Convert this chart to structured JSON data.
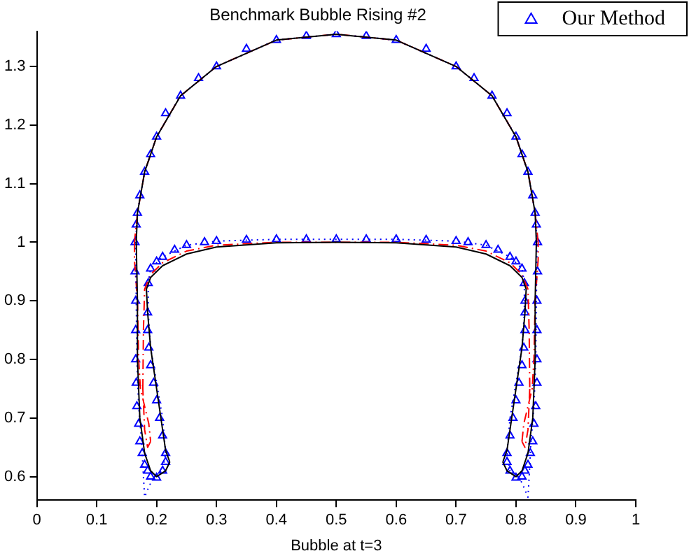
{
  "chart_data": {
    "type": "line",
    "title": "Benchmark Bubble Rising #2",
    "xlabel": "Bubble at t=3",
    "xlim": [
      0,
      1
    ],
    "xticks": [
      0,
      0.1,
      0.2,
      0.3,
      0.4,
      0.5,
      0.6,
      0.7,
      0.8,
      0.9,
      1
    ],
    "ylim": [
      0.56,
      1.36
    ],
    "yticks": [
      0.6,
      0.7,
      0.8,
      0.9,
      1,
      1.1,
      1.2,
      1.3
    ],
    "grid": false,
    "legend": "top right",
    "series": [
      {
        "color": "#000000",
        "line_style": "solid",
        "marker": "none",
        "x": [
          0.166,
          0.168,
          0.168,
          0.172,
          0.18,
          0.19,
          0.2,
          0.215,
          0.222,
          null,
          0.222,
          0.215,
          0.21,
          0.2,
          0.19,
          0.185,
          0.183,
          null,
          0.183,
          0.19,
          0.21,
          0.25,
          0.3,
          0.4,
          0.5,
          0.6,
          0.7,
          0.75,
          0.79,
          0.81,
          0.817,
          null,
          0.817,
          0.815,
          0.81,
          0.8,
          0.79,
          0.785,
          0.778,
          null,
          0.778,
          0.785,
          0.8,
          0.81,
          0.82,
          0.828,
          0.832,
          0.832,
          0.834,
          null,
          0.834,
          0.832,
          0.82,
          0.8,
          0.76,
          0.7,
          0.6,
          0.5,
          0.4,
          0.3,
          0.24,
          0.2,
          0.18,
          0.168,
          0.166
        ],
        "values": [
          1.0,
          0.9,
          0.8,
          0.7,
          0.64,
          0.61,
          0.6,
          0.61,
          0.625,
          null,
          0.625,
          0.645,
          0.68,
          0.75,
          0.82,
          0.88,
          0.92,
          null,
          0.92,
          0.94,
          0.96,
          0.98,
          0.992,
          0.999,
          1.0,
          0.999,
          0.992,
          0.98,
          0.96,
          0.94,
          0.92,
          null,
          0.92,
          0.88,
          0.82,
          0.75,
          0.68,
          0.645,
          0.625,
          null,
          0.625,
          0.61,
          0.6,
          0.61,
          0.64,
          0.7,
          0.8,
          0.9,
          1.0,
          null,
          1.0,
          1.05,
          1.12,
          1.18,
          1.25,
          1.3,
          1.345,
          1.355,
          1.345,
          1.3,
          1.25,
          1.18,
          1.12,
          1.05,
          1.0
        ]
      },
      {
        "color": "#0000ff",
        "line_style": "dotted",
        "marker": "none",
        "x": [
          0.165,
          0.166,
          0.167,
          0.17,
          0.175,
          0.178,
          0.18,
          0.186,
          0.195,
          0.21,
          0.215,
          null,
          0.215,
          0.21,
          0.2,
          0.19,
          0.186,
          0.186,
          null,
          0.186,
          0.19,
          0.21,
          0.25,
          0.3,
          0.4,
          0.5,
          0.6,
          0.7,
          0.75,
          0.79,
          0.81,
          0.814,
          null,
          0.814,
          0.814,
          0.81,
          0.8,
          0.79,
          0.785,
          null,
          0.785,
          0.79,
          0.805,
          0.814,
          0.82,
          0.822,
          0.825,
          0.83,
          0.833,
          0.834,
          0.835,
          null,
          0.835,
          0.832,
          0.82,
          0.8,
          0.76,
          0.7,
          0.6,
          0.5,
          0.4,
          0.3,
          0.24,
          0.2,
          0.18,
          0.168,
          0.165
        ],
        "values": [
          1.0,
          0.9,
          0.8,
          0.72,
          0.66,
          0.6,
          0.565,
          0.58,
          0.6,
          0.61,
          0.64,
          null,
          0.64,
          0.7,
          0.76,
          0.82,
          0.88,
          0.93,
          null,
          0.93,
          0.955,
          0.975,
          0.995,
          1.002,
          1.005,
          1.005,
          1.005,
          1.002,
          0.995,
          0.975,
          0.955,
          0.93,
          null,
          0.93,
          0.88,
          0.82,
          0.76,
          0.7,
          0.64,
          null,
          0.64,
          0.61,
          0.6,
          0.58,
          0.565,
          0.6,
          0.66,
          0.72,
          0.8,
          0.9,
          1.0,
          null,
          1.0,
          1.05,
          1.12,
          1.18,
          1.25,
          1.3,
          1.345,
          1.355,
          1.345,
          1.3,
          1.25,
          1.18,
          1.12,
          1.05,
          1.0
        ]
      },
      {
        "color": "#ff0000",
        "line_style": "dashed",
        "marker": "none",
        "x": [
          0.163,
          0.163,
          0.168,
          0.17,
          0.173,
          0.18,
          0.187,
          0.19,
          null,
          0.19,
          0.185,
          0.18,
          0.177,
          null,
          0.177,
          0.178,
          0.18,
          0.19,
          0.21,
          0.25,
          0.3,
          0.4,
          0.5,
          0.6,
          0.7,
          0.75,
          0.79,
          0.81,
          0.82,
          0.822,
          0.823,
          null,
          0.823,
          0.82,
          0.815,
          0.81,
          null,
          0.81,
          0.813,
          0.82,
          0.827,
          0.83,
          0.832,
          0.837,
          0.837,
          null,
          0.837,
          0.832,
          0.82,
          0.8,
          0.76,
          0.7,
          0.6,
          0.5,
          0.4,
          0.3,
          0.24,
          0.2,
          0.18,
          0.168,
          0.163
        ],
        "values": [
          1.0,
          0.97,
          0.9,
          0.8,
          0.75,
          0.72,
          0.69,
          0.66,
          null,
          0.66,
          0.65,
          0.68,
          0.75,
          null,
          0.75,
          0.85,
          0.92,
          0.945,
          0.965,
          0.985,
          0.995,
          1.0,
          1.0,
          1.0,
          0.995,
          0.985,
          0.965,
          0.945,
          0.92,
          0.85,
          0.75,
          null,
          0.75,
          0.68,
          0.65,
          0.66,
          null,
          0.66,
          0.69,
          0.72,
          0.75,
          0.8,
          0.9,
          0.97,
          1.0,
          null,
          1.0,
          1.05,
          1.12,
          1.18,
          1.25,
          1.3,
          1.345,
          1.355,
          1.345,
          1.3,
          1.25,
          1.18,
          1.12,
          1.05,
          1.0
        ]
      },
      {
        "name": "Our Method",
        "type": "scatter",
        "color": "#0000ff",
        "marker": "triangle",
        "x": [
          0.164,
          0.164,
          0.165,
          0.165,
          0.165,
          0.166,
          0.167,
          0.17,
          0.172,
          0.176,
          0.18,
          0.185,
          0.19,
          0.2,
          0.21,
          0.215,
          0.215,
          0.21,
          0.205,
          0.2,
          0.195,
          0.19,
          0.187,
          0.185,
          0.185,
          0.186,
          0.19,
          0.2,
          0.21,
          0.23,
          0.25,
          0.28,
          0.3,
          0.35,
          0.4,
          0.45,
          0.5,
          0.55,
          0.6,
          0.65,
          0.7,
          0.72,
          0.75,
          0.77,
          0.79,
          0.8,
          0.81,
          0.814,
          0.815,
          0.815,
          0.815,
          0.813,
          0.81,
          0.805,
          0.8,
          0.795,
          0.79,
          0.785,
          0.785,
          0.79,
          0.8,
          0.81,
          0.815,
          0.82,
          0.824,
          0.828,
          0.83,
          0.833,
          0.835,
          0.835,
          0.835,
          0.835,
          0.836,
          0.836,
          0.834,
          0.832,
          0.828,
          0.82,
          0.81,
          0.8,
          0.785,
          0.76,
          0.73,
          0.7,
          0.65,
          0.6,
          0.55,
          0.5,
          0.45,
          0.4,
          0.35,
          0.3,
          0.27,
          0.24,
          0.215,
          0.2,
          0.19,
          0.18,
          0.172,
          0.168,
          0.166
        ],
        "values": [
          1.0,
          0.95,
          0.9,
          0.85,
          0.8,
          0.76,
          0.72,
          0.69,
          0.66,
          0.64,
          0.62,
          0.61,
          0.6,
          0.598,
          0.61,
          0.625,
          0.64,
          0.67,
          0.7,
          0.73,
          0.76,
          0.79,
          0.82,
          0.85,
          0.88,
          0.93,
          0.955,
          0.967,
          0.975,
          0.987,
          0.995,
          1.0,
          1.002,
          1.004,
          1.005,
          1.005,
          1.005,
          1.005,
          1.005,
          1.004,
          1.002,
          1.0,
          0.995,
          0.987,
          0.975,
          0.967,
          0.955,
          0.93,
          0.9,
          0.88,
          0.85,
          0.82,
          0.79,
          0.76,
          0.73,
          0.7,
          0.67,
          0.64,
          0.625,
          0.61,
          0.598,
          0.6,
          0.61,
          0.62,
          0.64,
          0.66,
          0.69,
          0.72,
          0.76,
          0.8,
          0.85,
          0.9,
          0.95,
          1.0,
          1.03,
          1.05,
          1.08,
          1.12,
          1.15,
          1.18,
          1.22,
          1.25,
          1.28,
          1.3,
          1.33,
          1.345,
          1.352,
          1.355,
          1.352,
          1.345,
          1.33,
          1.3,
          1.28,
          1.25,
          1.22,
          1.18,
          1.15,
          1.12,
          1.08,
          1.05,
          1.03
        ]
      }
    ]
  }
}
